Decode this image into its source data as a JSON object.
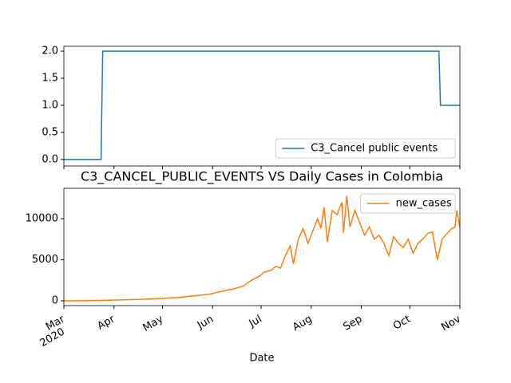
{
  "chart_data": [
    {
      "type": "line",
      "xlim": [
        "2020-03-01",
        "2020-11-01"
      ],
      "ylim": [
        -0.12,
        2.09
      ],
      "yticks": [
        {
          "value": 0,
          "label": "0.0"
        },
        {
          "value": 0.5,
          "label": "0.5"
        },
        {
          "value": 1,
          "label": "1.0"
        },
        {
          "value": 1.5,
          "label": "1.5"
        },
        {
          "value": 2,
          "label": "2.0"
        }
      ],
      "legend": "lower right",
      "series": [
        {
          "name": "C3_Cancel public events",
          "color": "#1f77b4",
          "x": [
            "2020-03-01",
            "2020-03-24",
            "2020-03-25",
            "2020-10-19",
            "2020-10-20",
            "2020-11-01"
          ],
          "values": [
            0,
            0,
            2,
            2,
            1,
            1
          ]
        }
      ]
    },
    {
      "type": "line",
      "title": "C3_CANCEL_PUBLIC_EVENTS VS Daily Cases in Colombia",
      "xlabel": "Date",
      "xlim": [
        "2020-03-01",
        "2020-11-01"
      ],
      "ylim": [
        -580,
        13700
      ],
      "yticks": [
        0,
        5000,
        10000
      ],
      "xticks": [
        {
          "value": "2020-03-01",
          "label": "Mar"
        },
        {
          "value": "2020-04-01",
          "label": "Apr"
        },
        {
          "value": "2020-05-01",
          "label": "May"
        },
        {
          "value": "2020-06-01",
          "label": "Jun"
        },
        {
          "value": "2020-07-01",
          "label": "Jul"
        },
        {
          "value": "2020-08-01",
          "label": "Aug"
        },
        {
          "value": "2020-09-01",
          "label": "Sep"
        },
        {
          "value": "2020-10-01",
          "label": "Oct"
        },
        {
          "value": "2020-11-01",
          "label": "Nov"
        }
      ],
      "xtick_year": "2020",
      "legend": "upper right",
      "series": [
        {
          "name": "new_cases",
          "color": "#ff7f0e",
          "x": [
            "2020-03-01",
            "2020-03-15",
            "2020-03-29",
            "2020-04-12",
            "2020-04-26",
            "2020-05-10",
            "2020-05-20",
            "2020-05-30",
            "2020-06-05",
            "2020-06-10",
            "2020-06-15",
            "2020-06-20",
            "2020-06-25",
            "2020-06-30",
            "2020-07-03",
            "2020-07-07",
            "2020-07-10",
            "2020-07-13",
            "2020-07-16",
            "2020-07-19",
            "2020-07-21",
            "2020-07-24",
            "2020-07-27",
            "2020-07-30",
            "2020-08-02",
            "2020-08-05",
            "2020-08-07",
            "2020-08-09",
            "2020-08-11",
            "2020-08-14",
            "2020-08-17",
            "2020-08-20",
            "2020-08-21",
            "2020-08-23",
            "2020-08-25",
            "2020-08-28",
            "2020-08-31",
            "2020-09-03",
            "2020-09-06",
            "2020-09-09",
            "2020-09-12",
            "2020-09-15",
            "2020-09-18",
            "2020-09-21",
            "2020-09-24",
            "2020-09-27",
            "2020-09-30",
            "2020-10-03",
            "2020-10-06",
            "2020-10-09",
            "2020-10-12",
            "2020-10-15",
            "2020-10-18",
            "2020-10-21",
            "2020-10-24",
            "2020-10-27",
            "2020-10-29",
            "2020-10-30",
            "2020-11-01"
          ],
          "values": [
            0,
            20,
            80,
            150,
            250,
            400,
            600,
            800,
            1100,
            1300,
            1500,
            1800,
            2500,
            3000,
            3500,
            3700,
            4200,
            4000,
            5500,
            6700,
            4500,
            7500,
            8800,
            7000,
            8500,
            10000,
            8800,
            11400,
            7200,
            11000,
            10500,
            12000,
            8300,
            12800,
            9000,
            11000,
            9500,
            8000,
            9000,
            7500,
            8000,
            7000,
            5500,
            7800,
            7000,
            6500,
            7500,
            5800,
            7000,
            7500,
            8200,
            8400,
            5000,
            7500,
            8200,
            8800,
            9000,
            11000,
            9000
          ]
        }
      ]
    }
  ]
}
